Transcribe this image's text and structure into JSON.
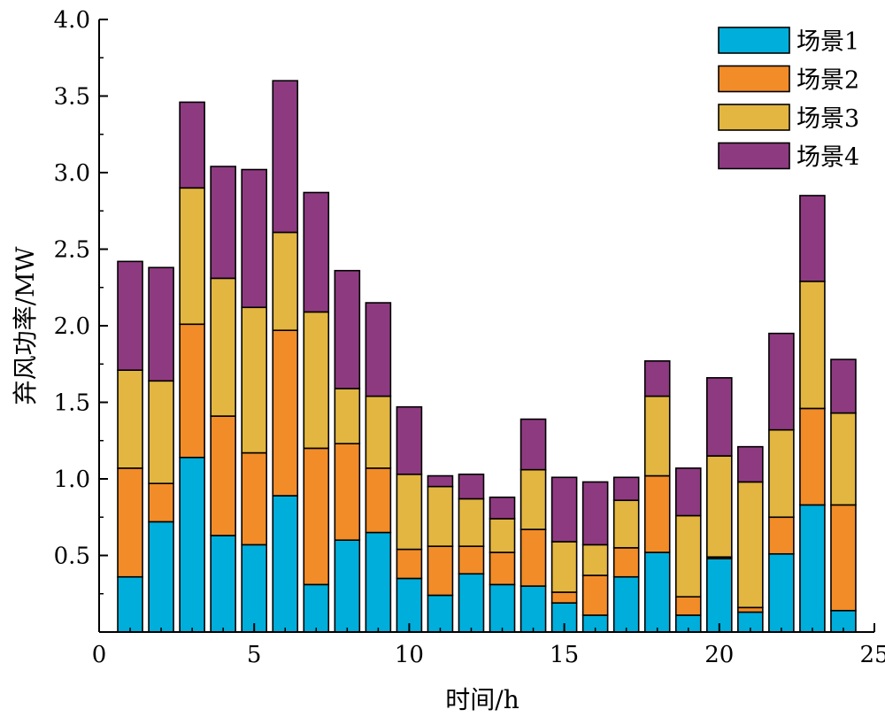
{
  "chart_data": {
    "type": "bar",
    "stacked": true,
    "title": "",
    "xlabel": "时间/h",
    "ylabel": "弃风功率/MW",
    "xlim": [
      0,
      25
    ],
    "ylim": [
      0,
      4.0
    ],
    "x_ticks": [
      0,
      5,
      10,
      15,
      20,
      25
    ],
    "y_ticks": [
      0.5,
      1.0,
      1.5,
      2.0,
      2.5,
      3.0,
      3.5,
      4.0
    ],
    "y_tick_labels": [
      "0.5",
      "1.0",
      "1.5",
      "2.0",
      "2.5",
      "3.0",
      "3.5",
      "4.0"
    ],
    "grid": false,
    "legend_position": "top-right",
    "x": [
      1,
      2,
      3,
      4,
      5,
      6,
      7,
      8,
      9,
      10,
      11,
      12,
      13,
      14,
      15,
      16,
      17,
      18,
      19,
      20,
      21,
      22,
      23,
      24
    ],
    "series": [
      {
        "name": "场景1",
        "color": "#00AEDB",
        "values": [
          0.36,
          0.72,
          1.14,
          0.63,
          0.57,
          0.89,
          0.31,
          0.6,
          0.65,
          0.35,
          0.24,
          0.38,
          0.31,
          0.3,
          0.19,
          0.11,
          0.36,
          0.52,
          0.11,
          0.48,
          0.13,
          0.51,
          0.83,
          0.14
        ]
      },
      {
        "name": "场景2",
        "color": "#F28C28",
        "values": [
          0.71,
          0.25,
          0.87,
          0.78,
          0.6,
          1.08,
          0.89,
          0.63,
          0.42,
          0.19,
          0.32,
          0.18,
          0.21,
          0.37,
          0.07,
          0.26,
          0.19,
          0.5,
          0.12,
          0.01,
          0.03,
          0.24,
          0.63,
          0.69
        ]
      },
      {
        "name": "场景3",
        "color": "#E2B640",
        "values": [
          0.64,
          0.67,
          0.89,
          0.9,
          0.95,
          0.64,
          0.89,
          0.36,
          0.47,
          0.49,
          0.39,
          0.31,
          0.22,
          0.39,
          0.33,
          0.2,
          0.31,
          0.52,
          0.53,
          0.66,
          0.82,
          0.57,
          0.83,
          0.6
        ]
      },
      {
        "name": "场景4",
        "color": "#8E3A80",
        "values": [
          0.71,
          0.74,
          0.56,
          0.73,
          0.9,
          0.99,
          0.78,
          0.77,
          0.61,
          0.44,
          0.07,
          0.16,
          0.14,
          0.33,
          0.42,
          0.41,
          0.15,
          0.23,
          0.31,
          0.51,
          0.23,
          0.63,
          0.56,
          0.35
        ]
      }
    ]
  }
}
